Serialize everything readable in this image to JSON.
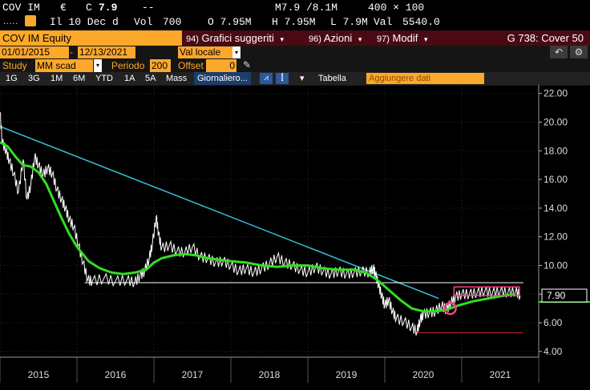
{
  "quote": {
    "ticker": "COV IM",
    "currency_symbol": "€",
    "last_prefix": "C",
    "last": "7.9",
    "change": "--",
    "bid_ask": "M7.9 /8.1M",
    "size": "400 × 100",
    "date_label": "Il 10 Dec d",
    "vol_label": "Vol",
    "vol_value": "700",
    "open": "O 7.95M",
    "high": "H 7.95M",
    "low": "L 7.9M",
    "val_label": "Val",
    "val_value": "5540.0"
  },
  "title_bar": {
    "security": "COV IM Equity",
    "menu": [
      {
        "num": "94)",
        "label": "Grafici suggeriti"
      },
      {
        "num": "96)",
        "label": "Azioni"
      },
      {
        "num": "97)",
        "label": "Modif"
      }
    ],
    "function": "G 738: Cover 50"
  },
  "range": {
    "start": "01/01/2015",
    "end": "12/13/2021",
    "currency": "Val locale"
  },
  "study": {
    "label": "Study",
    "value": "MM scad",
    "period_label": "Periodo",
    "period_value": "200",
    "offset_label": "Offset",
    "offset_value": "0"
  },
  "periods": [
    "1G",
    "3G",
    "1M",
    "6M",
    "YTD",
    "1A",
    "5A",
    "Mass"
  ],
  "frequency": "Giornaliero",
  "table_label": "Tabella",
  "add_data_placeholder": "Aggiungere dati",
  "icons": {
    "undo": "undo-icon",
    "settings": "settings-icon",
    "pen": "pen-icon"
  },
  "colors": {
    "price": "#ffffff",
    "moving_average": "#33dd22",
    "trendline": "#33b6cc",
    "support": "#ffffff",
    "low_line": "#cc2233",
    "annotation": "#ff3d8b",
    "accent": "#fca82b"
  },
  "chart_data": {
    "type": "line",
    "x_labels": [
      "2015",
      "2016",
      "2017",
      "2018",
      "2019",
      "2020",
      "2021"
    ],
    "y_ticks": [
      "22.00",
      "20.00",
      "18.00",
      "16.00",
      "14.00",
      "12.00",
      "10.00",
      "8.00",
      "6.00",
      "4.00"
    ],
    "ylim": [
      3.6,
      22.6
    ],
    "xlim": [
      2015.0,
      2022.0
    ],
    "last_value_label": "7.90",
    "price_series": [
      [
        2015.0,
        20.7
      ],
      [
        2015.03,
        18.6
      ],
      [
        2015.08,
        18.0
      ],
      [
        2015.12,
        17.3
      ],
      [
        2015.18,
        16.4
      ],
      [
        2015.24,
        15.1
      ],
      [
        2015.3,
        17.4
      ],
      [
        2015.35,
        14.6
      ],
      [
        2015.4,
        15.6
      ],
      [
        2015.45,
        17.6
      ],
      [
        2015.5,
        17.0
      ],
      [
        2015.56,
        16.3
      ],
      [
        2015.62,
        16.8
      ],
      [
        2015.68,
        16.4
      ],
      [
        2015.74,
        15.3
      ],
      [
        2015.8,
        14.6
      ],
      [
        2015.85,
        14.0
      ],
      [
        2015.9,
        13.2
      ],
      [
        2015.96,
        12.7
      ],
      [
        2016.02,
        11.4
      ],
      [
        2016.08,
        10.2
      ],
      [
        2016.14,
        9.0
      ],
      [
        2016.2,
        8.9
      ],
      [
        2016.35,
        9.1
      ],
      [
        2016.5,
        8.9
      ],
      [
        2016.65,
        9.0
      ],
      [
        2016.75,
        8.8
      ],
      [
        2016.82,
        9.3
      ],
      [
        2016.88,
        9.6
      ],
      [
        2016.94,
        10.5
      ],
      [
        2016.98,
        11.5
      ],
      [
        2017.03,
        13.4
      ],
      [
        2017.06,
        12.2
      ],
      [
        2017.1,
        11.2
      ],
      [
        2017.2,
        11.4
      ],
      [
        2017.3,
        11.0
      ],
      [
        2017.4,
        10.9
      ],
      [
        2017.5,
        11.3
      ],
      [
        2017.6,
        10.6
      ],
      [
        2017.7,
        10.5
      ],
      [
        2017.8,
        10.2
      ],
      [
        2017.9,
        10.3
      ],
      [
        2018.0,
        10.0
      ],
      [
        2018.1,
        9.6
      ],
      [
        2018.2,
        9.8
      ],
      [
        2018.3,
        9.5
      ],
      [
        2018.4,
        9.8
      ],
      [
        2018.5,
        10.1
      ],
      [
        2018.6,
        10.6
      ],
      [
        2018.7,
        10.2
      ],
      [
        2018.8,
        10.0
      ],
      [
        2018.9,
        9.7
      ],
      [
        2019.0,
        9.5
      ],
      [
        2019.1,
        9.9
      ],
      [
        2019.2,
        9.6
      ],
      [
        2019.3,
        9.4
      ],
      [
        2019.4,
        9.6
      ],
      [
        2019.5,
        9.4
      ],
      [
        2019.6,
        9.5
      ],
      [
        2019.7,
        9.6
      ],
      [
        2019.8,
        9.5
      ],
      [
        2019.85,
        9.8
      ],
      [
        2019.88,
        9.4
      ],
      [
        2019.92,
        8.6
      ],
      [
        2019.96,
        7.9
      ],
      [
        2020.0,
        7.2
      ],
      [
        2020.05,
        7.6
      ],
      [
        2020.1,
        6.8
      ],
      [
        2020.15,
        6.3
      ],
      [
        2020.25,
        6.1
      ],
      [
        2020.35,
        5.7
      ],
      [
        2020.42,
        5.4
      ],
      [
        2020.46,
        6.2
      ],
      [
        2020.5,
        6.6
      ],
      [
        2020.58,
        6.7
      ],
      [
        2020.66,
        6.8
      ],
      [
        2020.74,
        7.2
      ],
      [
        2020.8,
        6.9
      ],
      [
        2020.86,
        7.4
      ],
      [
        2020.92,
        7.8
      ],
      [
        2021.0,
        8.0
      ],
      [
        2021.1,
        8.0
      ],
      [
        2021.2,
        8.1
      ],
      [
        2021.3,
        8.2
      ],
      [
        2021.4,
        8.1
      ],
      [
        2021.5,
        8.2
      ],
      [
        2021.6,
        8.1
      ],
      [
        2021.7,
        8.2
      ],
      [
        2021.76,
        7.9
      ]
    ],
    "ma_series": [
      [
        2015.0,
        18.6
      ],
      [
        2015.1,
        18.3
      ],
      [
        2015.2,
        17.6
      ],
      [
        2015.3,
        17.0
      ],
      [
        2015.4,
        16.9
      ],
      [
        2015.5,
        16.5
      ],
      [
        2015.6,
        15.7
      ],
      [
        2015.7,
        14.5
      ],
      [
        2015.8,
        13.3
      ],
      [
        2015.9,
        12.2
      ],
      [
        2016.0,
        11.3
      ],
      [
        2016.15,
        10.3
      ],
      [
        2016.3,
        9.8
      ],
      [
        2016.45,
        9.5
      ],
      [
        2016.6,
        9.4
      ],
      [
        2016.75,
        9.5
      ],
      [
        2016.9,
        9.7
      ],
      [
        2017.0,
        10.2
      ],
      [
        2017.1,
        10.5
      ],
      [
        2017.25,
        10.7
      ],
      [
        2017.4,
        10.8
      ],
      [
        2017.55,
        10.7
      ],
      [
        2017.7,
        10.5
      ],
      [
        2017.85,
        10.4
      ],
      [
        2018.0,
        10.3
      ],
      [
        2018.2,
        10.2
      ],
      [
        2018.4,
        10.0
      ],
      [
        2018.6,
        9.9
      ],
      [
        2018.8,
        10.0
      ],
      [
        2019.0,
        10.0
      ],
      [
        2019.2,
        9.8
      ],
      [
        2019.4,
        9.7
      ],
      [
        2019.6,
        9.7
      ],
      [
        2019.75,
        9.5
      ],
      [
        2019.9,
        9.0
      ],
      [
        2020.05,
        8.3
      ],
      [
        2020.2,
        7.6
      ],
      [
        2020.35,
        7.0
      ],
      [
        2020.5,
        6.8
      ],
      [
        2020.65,
        6.8
      ],
      [
        2020.8,
        6.9
      ],
      [
        2020.95,
        7.2
      ],
      [
        2021.15,
        7.5
      ],
      [
        2021.35,
        7.7
      ],
      [
        2021.55,
        7.9
      ],
      [
        2021.7,
        8.0
      ]
    ],
    "trendline": [
      [
        2015.0,
        19.7
      ],
      [
        2020.7,
        7.7
      ]
    ],
    "support_line": [
      [
        2016.1,
        8.8
      ],
      [
        2021.8,
        8.8
      ]
    ],
    "low_line": [
      [
        2020.4,
        5.3
      ],
      [
        2021.8,
        5.3
      ]
    ],
    "resistance_box": {
      "x0": 2020.9,
      "x1": 2021.75,
      "y0": 7.9,
      "y1": 8.5
    },
    "marker_circle": {
      "x": 2020.85,
      "y": 7.0
    }
  }
}
